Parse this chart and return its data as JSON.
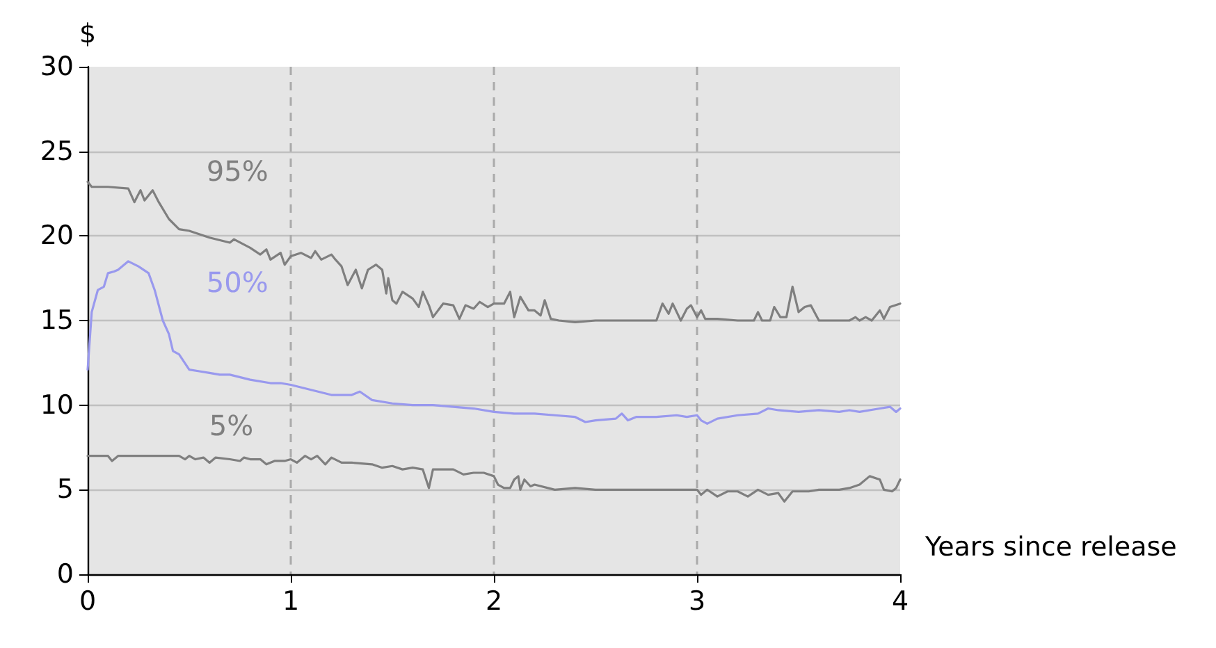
{
  "chart_data": {
    "type": "line",
    "xlabel": "Years since release",
    "ylabel": "$",
    "xlim": [
      0,
      4
    ],
    "xticks": [
      0,
      1,
      2,
      3,
      4
    ],
    "ylim": [
      0,
      30
    ],
    "yticks": [
      0,
      5,
      10,
      15,
      20,
      25,
      30
    ],
    "grid": true,
    "legend": false,
    "marker": "none",
    "line_style": "solid",
    "series": [
      {
        "name": "95%",
        "color": "#7f7f7f",
        "x": [
          0,
          0.02,
          0.1,
          0.2,
          0.23,
          0.26,
          0.28,
          0.32,
          0.35,
          0.4,
          0.45,
          0.5,
          0.6,
          0.7,
          0.72,
          0.8,
          0.85,
          0.88,
          0.9,
          0.95,
          0.97,
          1.0,
          1.05,
          1.1,
          1.12,
          1.15,
          1.2,
          1.22,
          1.25,
          1.28,
          1.32,
          1.35,
          1.38,
          1.42,
          1.45,
          1.47,
          1.48,
          1.5,
          1.52,
          1.55,
          1.6,
          1.63,
          1.65,
          1.68,
          1.7,
          1.75,
          1.8,
          1.83,
          1.86,
          1.9,
          1.93,
          1.97,
          2.0,
          2.05,
          2.08,
          2.1,
          2.13,
          2.17,
          2.2,
          2.23,
          2.25,
          2.28,
          2.32,
          2.4,
          2.5,
          2.6,
          2.7,
          2.8,
          2.83,
          2.86,
          2.88,
          2.92,
          2.95,
          2.97,
          3.0,
          3.02,
          3.04,
          3.1,
          3.2,
          3.28,
          3.3,
          3.32,
          3.36,
          3.38,
          3.41,
          3.44,
          3.47,
          3.5,
          3.53,
          3.56,
          3.6,
          3.7,
          3.75,
          3.78,
          3.8,
          3.83,
          3.86,
          3.9,
          3.92,
          3.95,
          4.0
        ],
        "values": [
          23.2,
          22.9,
          22.9,
          22.8,
          22.0,
          22.7,
          22.1,
          22.7,
          22.0,
          21.0,
          20.4,
          20.3,
          19.9,
          19.6,
          19.8,
          19.3,
          18.9,
          19.2,
          18.6,
          19.0,
          18.3,
          18.8,
          19.0,
          18.7,
          19.1,
          18.6,
          18.9,
          18.6,
          18.2,
          17.1,
          18.0,
          16.9,
          18.0,
          18.3,
          18.0,
          16.6,
          17.5,
          16.2,
          16.0,
          16.7,
          16.3,
          15.8,
          16.7,
          15.9,
          15.2,
          16.0,
          15.9,
          15.1,
          15.9,
          15.7,
          16.1,
          15.8,
          16.0,
          16.0,
          16.7,
          15.2,
          16.4,
          15.6,
          15.6,
          15.3,
          16.2,
          15.1,
          15.0,
          14.9,
          15.0,
          15.0,
          15.0,
          15.0,
          16.0,
          15.4,
          16.0,
          15.0,
          15.7,
          15.9,
          15.2,
          15.6,
          15.1,
          15.1,
          15.0,
          15.0,
          15.5,
          15.0,
          15.0,
          15.8,
          15.2,
          15.2,
          17.0,
          15.5,
          15.8,
          15.9,
          15.0,
          15.0,
          15.0,
          15.2,
          15.0,
          15.2,
          15.0,
          15.6,
          15.1,
          15.8,
          16.0
        ]
      },
      {
        "name": "50%",
        "color": "#9999ee",
        "x": [
          0,
          0.02,
          0.05,
          0.08,
          0.1,
          0.13,
          0.15,
          0.2,
          0.25,
          0.3,
          0.33,
          0.37,
          0.4,
          0.42,
          0.45,
          0.5,
          0.55,
          0.6,
          0.65,
          0.7,
          0.8,
          0.9,
          0.95,
          1.0,
          1.1,
          1.2,
          1.3,
          1.34,
          1.4,
          1.5,
          1.6,
          1.7,
          1.8,
          1.9,
          2.0,
          2.1,
          2.2,
          2.3,
          2.4,
          2.45,
          2.5,
          2.6,
          2.63,
          2.66,
          2.7,
          2.8,
          2.9,
          2.95,
          3.0,
          3.02,
          3.05,
          3.1,
          3.2,
          3.3,
          3.35,
          3.4,
          3.5,
          3.6,
          3.7,
          3.75,
          3.8,
          3.9,
          3.95,
          3.98,
          4.0
        ],
        "values": [
          12.1,
          15.5,
          16.8,
          17.0,
          17.8,
          17.9,
          18.0,
          18.5,
          18.2,
          17.8,
          16.8,
          15.0,
          14.2,
          13.2,
          13.0,
          12.1,
          12.0,
          11.9,
          11.8,
          11.8,
          11.5,
          11.3,
          11.3,
          11.2,
          10.9,
          10.6,
          10.6,
          10.8,
          10.3,
          10.1,
          10.0,
          10.0,
          9.9,
          9.8,
          9.6,
          9.5,
          9.5,
          9.4,
          9.3,
          9.0,
          9.1,
          9.2,
          9.5,
          9.1,
          9.3,
          9.3,
          9.4,
          9.3,
          9.4,
          9.1,
          8.9,
          9.2,
          9.4,
          9.5,
          9.8,
          9.7,
          9.6,
          9.7,
          9.6,
          9.7,
          9.6,
          9.8,
          9.9,
          9.6,
          9.8
        ]
      },
      {
        "name": "5%",
        "color": "#7f7f7f",
        "x": [
          0,
          0.1,
          0.12,
          0.15,
          0.3,
          0.45,
          0.48,
          0.5,
          0.53,
          0.57,
          0.6,
          0.63,
          0.7,
          0.75,
          0.77,
          0.8,
          0.85,
          0.88,
          0.92,
          0.97,
          1.0,
          1.03,
          1.07,
          1.1,
          1.13,
          1.17,
          1.2,
          1.25,
          1.3,
          1.4,
          1.45,
          1.5,
          1.55,
          1.6,
          1.65,
          1.68,
          1.7,
          1.8,
          1.85,
          1.9,
          1.95,
          2.0,
          2.02,
          2.05,
          2.08,
          2.1,
          2.12,
          2.13,
          2.15,
          2.18,
          2.2,
          2.3,
          2.4,
          2.5,
          2.6,
          2.7,
          2.8,
          2.9,
          3.0,
          3.02,
          3.05,
          3.1,
          3.15,
          3.2,
          3.25,
          3.3,
          3.35,
          3.4,
          3.43,
          3.47,
          3.55,
          3.6,
          3.7,
          3.75,
          3.8,
          3.85,
          3.9,
          3.92,
          3.96,
          3.98,
          4.0
        ],
        "values": [
          7.0,
          7.0,
          6.7,
          7.0,
          7.0,
          7.0,
          6.8,
          7.0,
          6.8,
          6.9,
          6.6,
          6.9,
          6.8,
          6.7,
          6.9,
          6.8,
          6.8,
          6.5,
          6.7,
          6.7,
          6.8,
          6.6,
          7.0,
          6.8,
          7.0,
          6.5,
          6.9,
          6.6,
          6.6,
          6.5,
          6.3,
          6.4,
          6.2,
          6.3,
          6.2,
          5.1,
          6.2,
          6.2,
          5.9,
          6.0,
          6.0,
          5.8,
          5.3,
          5.1,
          5.1,
          5.6,
          5.8,
          5.0,
          5.6,
          5.2,
          5.3,
          5.0,
          5.1,
          5.0,
          5.0,
          5.0,
          5.0,
          5.0,
          5.0,
          4.7,
          5.0,
          4.6,
          4.9,
          4.9,
          4.6,
          5.0,
          4.7,
          4.8,
          4.3,
          4.9,
          4.9,
          5.0,
          5.0,
          5.1,
          5.3,
          5.8,
          5.6,
          5.0,
          4.9,
          5.1,
          5.6
        ]
      }
    ]
  }
}
